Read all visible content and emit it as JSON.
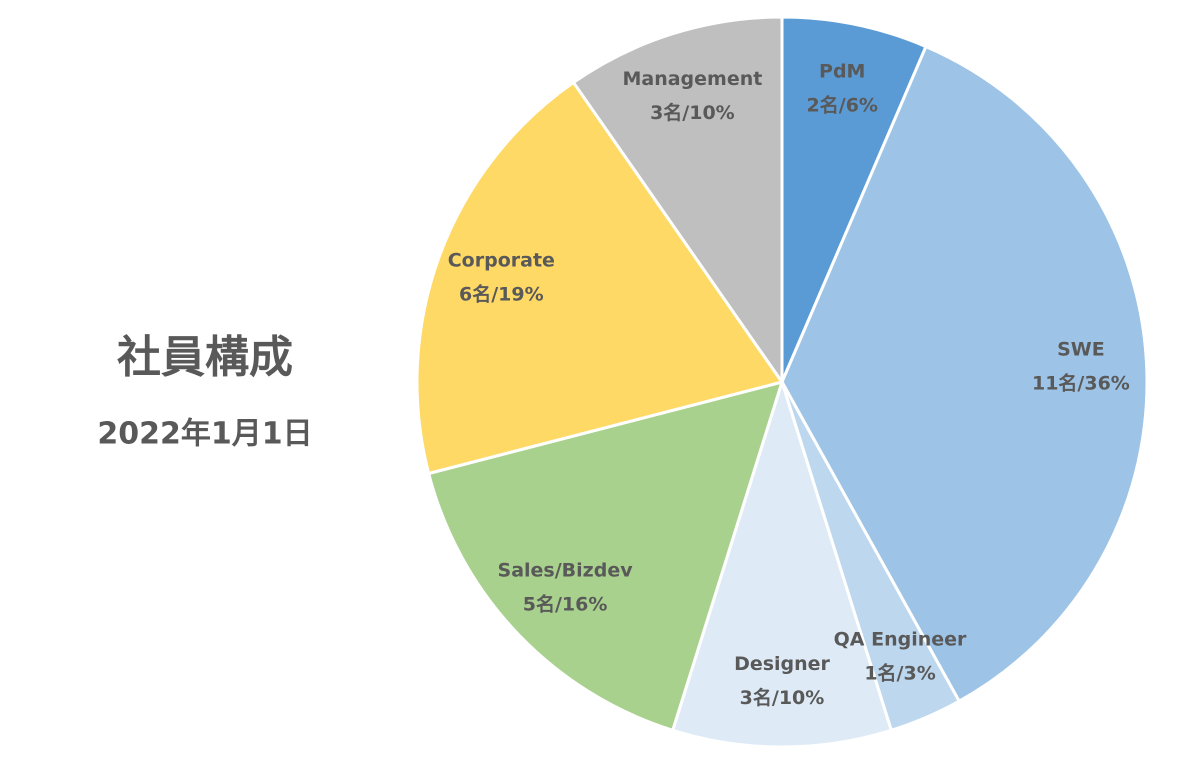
{
  "chart_data": {
    "type": "pie",
    "title": "社員構成",
    "subtitle": "2022年1月1日",
    "categories": [
      "PdM",
      "SWE",
      "QA Engineer",
      "Designer",
      "Sales/Bizdev",
      "Corporate",
      "Management"
    ],
    "values": [
      2,
      11,
      1,
      3,
      5,
      6,
      3
    ],
    "value_labels": [
      "2名/6%",
      "11名/36%",
      "1名/3%",
      "3名/10%",
      "5名/16%",
      "6名/19%",
      "3名/10%"
    ],
    "colors": [
      "#5b9bd5",
      "#9dc3e6",
      "#bdd7ee",
      "#deebf7",
      "#a9d18e",
      "#ffd966",
      "#bfbfbf"
    ]
  }
}
